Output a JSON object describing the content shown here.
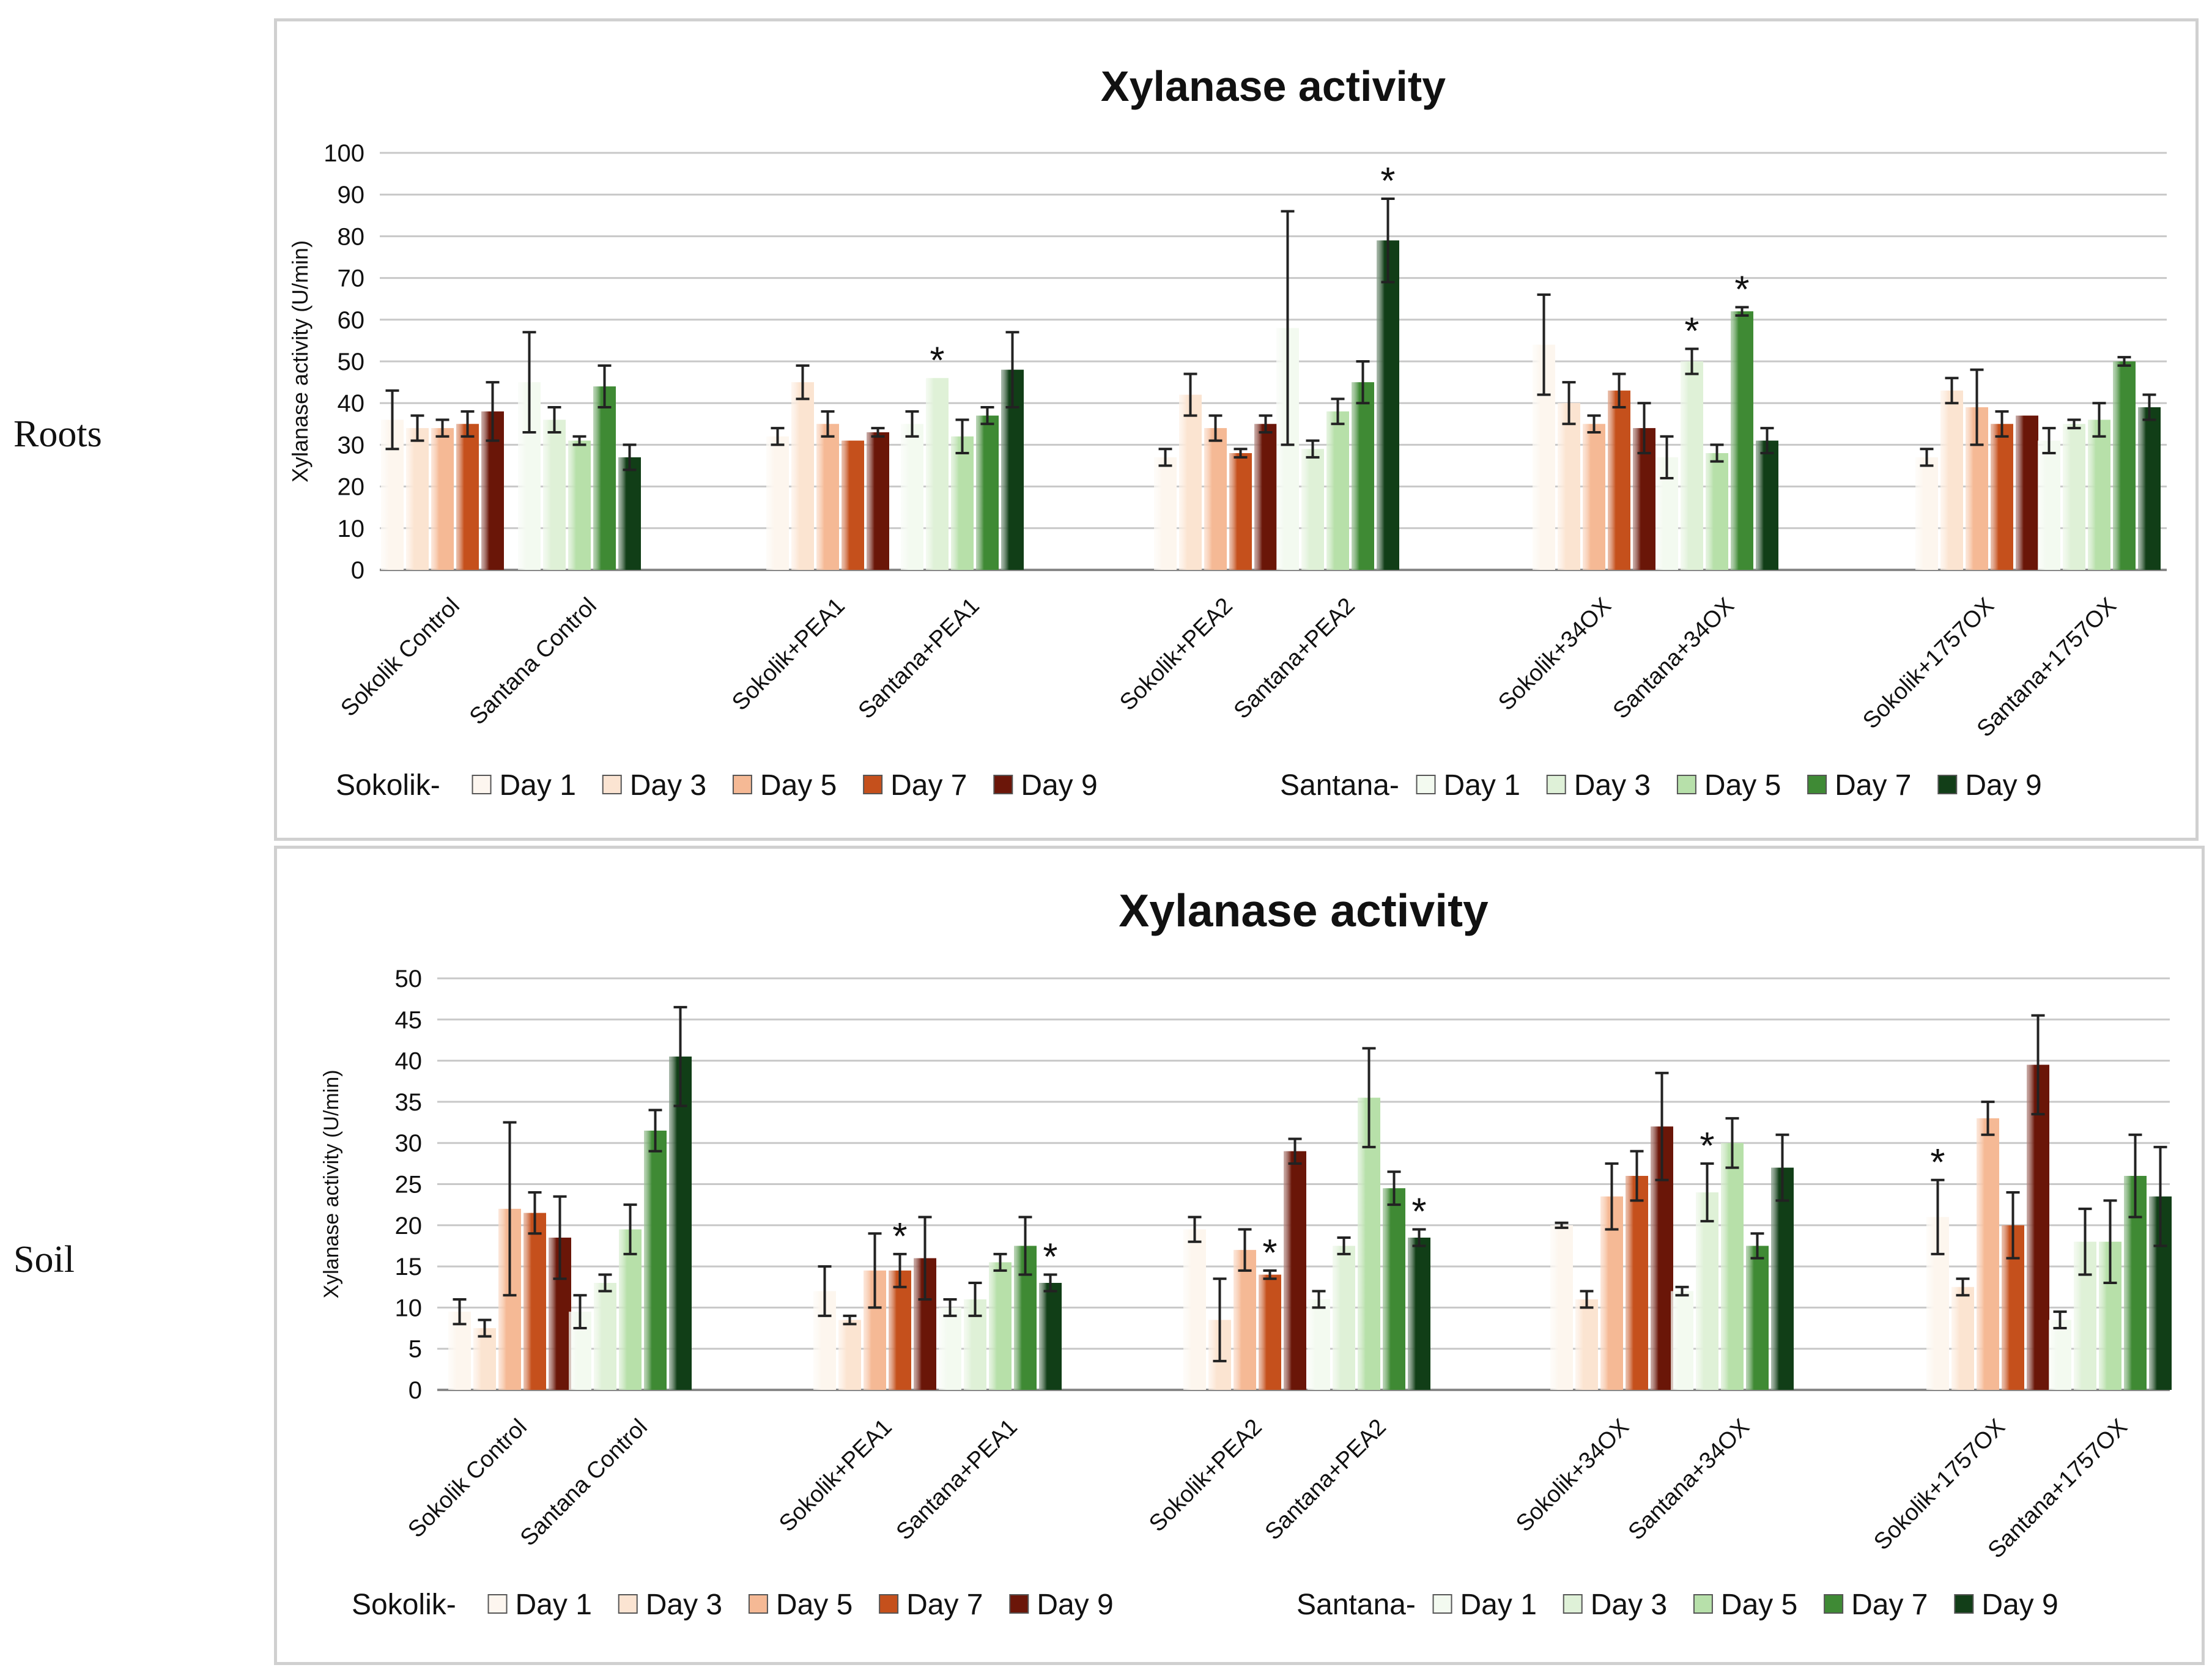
{
  "row_labels": [
    "Roots",
    "Soil"
  ],
  "colors": {
    "sokolik": [
      "#fdf6ef",
      "#fbe4d2",
      "#f5b995",
      "#c5501c",
      "#6b1609"
    ],
    "santana": [
      "#f3faf0",
      "#dff1d8",
      "#b7e0aa",
      "#3f8a35",
      "#123e18"
    ],
    "grid": "#c8c8c8",
    "axis": "#888888",
    "text": "#111111"
  },
  "chart_data": [
    {
      "type": "bar",
      "title": "Xylanase activity",
      "ylabel": "Xylanase activity (U/min)",
      "ylim": [
        0,
        100
      ],
      "yticks": [
        0,
        10,
        20,
        30,
        40,
        50,
        60,
        70,
        80,
        90,
        100
      ],
      "grid": true,
      "legend_position": "bottom",
      "categories": [
        "Sokolik Control",
        "Santana Control",
        "Sokolik+PEA1",
        "Santana+PEA1",
        "Sokolik+PEA2",
        "Santana+PEA2",
        "Sokolik+34OX",
        "Santana+34OX",
        "Sokolik+1757OX",
        "Santana+1757OX"
      ],
      "series_labels": [
        "Day 1",
        "Day 3",
        "Day 5",
        "Day 7",
        "Day 9"
      ],
      "legend": {
        "sokolik_label": "Sokolik-",
        "santana_label": "Santana-"
      },
      "values": [
        [
          36,
          34,
          34,
          35,
          38
        ],
        [
          45,
          36,
          31,
          44,
          27
        ],
        [
          32,
          45,
          35,
          31,
          33
        ],
        [
          35,
          46,
          32,
          37,
          48
        ],
        [
          27,
          42,
          34,
          28,
          35
        ],
        [
          58,
          29,
          38,
          45,
          79
        ],
        [
          54,
          40,
          35,
          43,
          34
        ],
        [
          27,
          50,
          28,
          62,
          31
        ],
        [
          27,
          43,
          39,
          35,
          37
        ],
        [
          31,
          35,
          36,
          50,
          39
        ]
      ],
      "errors": [
        [
          7,
          3,
          2,
          3,
          7
        ],
        [
          12,
          3,
          1,
          5,
          3
        ],
        [
          2,
          4,
          3,
          0,
          1
        ],
        [
          3,
          0,
          4,
          2,
          9
        ],
        [
          2,
          5,
          3,
          1,
          2
        ],
        [
          28,
          2,
          3,
          5,
          10
        ],
        [
          12,
          5,
          2,
          4,
          6
        ],
        [
          5,
          3,
          2,
          1,
          3
        ],
        [
          2,
          3,
          9,
          3,
          0
        ],
        [
          3,
          1,
          4,
          1,
          3
        ]
      ],
      "asterisks": [
        {
          "category": 3,
          "series": 1
        },
        {
          "category": 5,
          "series": 4
        },
        {
          "category": 7,
          "series": 1
        },
        {
          "category": 7,
          "series": 3
        }
      ]
    },
    {
      "type": "bar",
      "title": "Xylanase activity",
      "ylabel": "Xylanase activity (U/min)",
      "ylim": [
        0,
        50
      ],
      "yticks": [
        0,
        5,
        10,
        15,
        20,
        25,
        30,
        35,
        40,
        45,
        50
      ],
      "grid": true,
      "legend_position": "bottom",
      "categories": [
        "Sokolik Control",
        "Santana Control",
        "Sokolik+PEA1",
        "Santana+PEA1",
        "Sokolik+PEA2",
        "Santana+PEA2",
        "Sokolik+34OX",
        "Santana+34OX",
        "Sokolik+1757OX",
        "Santana+1757OX"
      ],
      "series_labels": [
        "Day 1",
        "Day 3",
        "Day 5",
        "Day 7",
        "Day 9"
      ],
      "legend": {
        "sokolik_label": "Sokolik-",
        "santana_label": "Santana-"
      },
      "values": [
        [
          9.5,
          7.5,
          22,
          21.5,
          18.5
        ],
        [
          9.5,
          13,
          19.5,
          31.5,
          40.5
        ],
        [
          12,
          8.5,
          14.5,
          14.5,
          16
        ],
        [
          10,
          11,
          15.5,
          17.5,
          13
        ],
        [
          19.5,
          8.5,
          17,
          14,
          29
        ],
        [
          11,
          17.5,
          35.5,
          24.5,
          18.5
        ],
        [
          20,
          11,
          23.5,
          26,
          32
        ],
        [
          12,
          24,
          30,
          17.5,
          27
        ],
        [
          21,
          12.5,
          33,
          20,
          39.5
        ],
        [
          8.5,
          18,
          18,
          26,
          23.5
        ]
      ],
      "errors": [
        [
          1.5,
          1,
          10.5,
          2.5,
          5
        ],
        [
          2,
          1,
          3,
          2.5,
          6
        ],
        [
          3,
          0.5,
          4.5,
          2,
          5
        ],
        [
          1,
          2,
          1,
          3.5,
          1
        ],
        [
          1.5,
          5,
          2.5,
          0.5,
          1.5
        ],
        [
          1,
          1,
          6,
          2,
          1
        ],
        [
          0.3,
          1,
          4,
          3,
          6.5
        ],
        [
          0.5,
          3.5,
          3,
          1.5,
          4
        ],
        [
          4.5,
          1,
          2,
          4,
          6
        ],
        [
          1,
          4,
          5,
          5,
          6
        ]
      ],
      "asterisks": [
        {
          "category": 2,
          "series": 3
        },
        {
          "category": 3,
          "series": 4
        },
        {
          "category": 4,
          "series": 3
        },
        {
          "category": 5,
          "series": 4
        },
        {
          "category": 7,
          "series": 1
        },
        {
          "category": 8,
          "series": 0
        }
      ]
    }
  ]
}
